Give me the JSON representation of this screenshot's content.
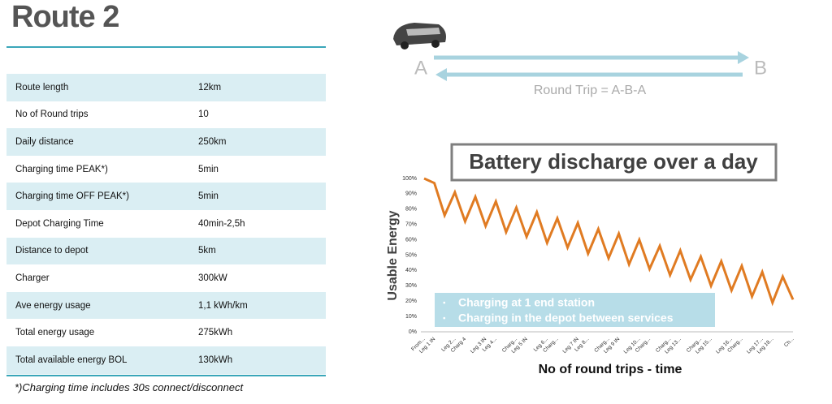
{
  "header": {
    "title": "Route 2"
  },
  "table": {
    "rows": [
      [
        "Route length",
        "12km"
      ],
      [
        "No of Round trips",
        "10"
      ],
      [
        "Daily distance",
        "250km"
      ],
      [
        "Charging time PEAK*)",
        "5min"
      ],
      [
        "Charging time OFF PEAK*)",
        "5min"
      ],
      [
        "Depot Charging Time",
        "40min-2,5h"
      ],
      [
        "Distance to depot",
        "5km"
      ],
      [
        "Charger",
        "300kW"
      ],
      [
        "Ave energy  usage",
        "1,1 kWh/km"
      ],
      [
        "Total energy usage",
        "275kWh"
      ],
      [
        "Total available  energy  BOL",
        "130kWh"
      ]
    ]
  },
  "footnote": "*)Charging time includes 30s connect/disconnect",
  "diagram": {
    "start": "A",
    "end": "B",
    "caption": "Round Trip  = A-B-A"
  },
  "chart_data": {
    "type": "line",
    "title": "Battery discharge over a day",
    "ylabel": "Usable Energy",
    "xlabel": "No of round trips - time",
    "color": "#e07b22",
    "categories": [
      "From...",
      "Leg 1 IN",
      null,
      "Leg 2...",
      "Charg 4",
      null,
      "Leg 3 IN",
      "Leg 4...",
      null,
      "Charg...",
      "Leg 5 IN",
      null,
      "Leg 6...",
      "Charg...",
      null,
      "Leg 7 IN",
      "Leg 8...",
      null,
      "Charg...",
      "Leg 9 IN",
      null,
      "Leg 10...",
      "Charg...",
      null,
      "Charg...",
      "Leg 13...",
      null,
      "Charg...",
      "Leg 15...",
      null,
      "Leg 16...",
      "Charg...",
      null,
      "Leg 17...",
      "Leg 18...",
      null,
      "Ch..."
    ],
    "values": [
      100,
      97,
      76,
      91,
      72,
      88,
      69,
      85,
      65,
      81,
      62,
      78,
      58,
      74,
      55,
      71,
      51,
      67,
      48,
      64,
      44,
      60,
      41,
      56,
      37,
      53,
      34,
      49,
      30,
      46,
      27,
      43,
      23,
      39,
      19,
      36,
      21
    ],
    "ylim": [
      0,
      100
    ],
    "yticks": [
      {
        "value": 0,
        "label": "0%"
      },
      {
        "value": 10,
        "label": "10%"
      },
      {
        "value": 20,
        "label": "20%"
      },
      {
        "value": 30,
        "label": "30%"
      },
      {
        "value": 40,
        "label": "40%"
      },
      {
        "value": 50,
        "label": "50%"
      },
      {
        "value": 60,
        "label": "60%"
      },
      {
        "value": 70,
        "label": "70%"
      },
      {
        "value": 80,
        "label": "80%"
      },
      {
        "value": 90,
        "label": "90%"
      },
      {
        "value": 100,
        "label": "100%"
      }
    ],
    "legend_notes": [
      "Charging at 1 end station",
      "Charging in the depot  between services"
    ]
  }
}
